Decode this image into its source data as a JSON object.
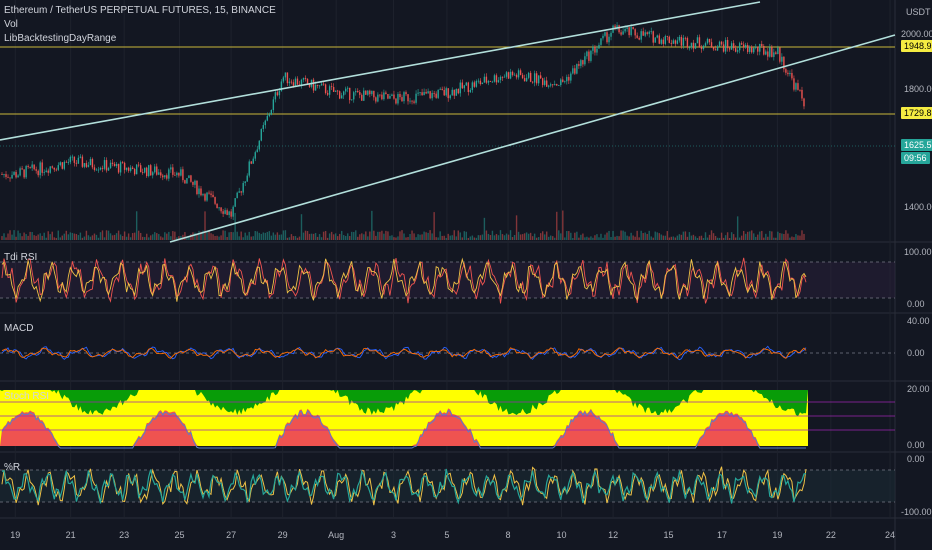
{
  "header": {
    "symbol_title": "Ethereum / TetherUS PERPETUAL FUTURES, 15, BINANCE",
    "indicator_vol": "Vol",
    "indicator_lib": "LibBacktestingDayRange"
  },
  "price_axis": {
    "unit": "USDT",
    "ticks": [
      "2000.00",
      "1800.00",
      "1400.00"
    ],
    "tags": [
      {
        "text": "1948.95",
        "bg": "#f5ec42",
        "fg": "#000000"
      },
      {
        "text": "1729.83",
        "bg": "#f5ec42",
        "fg": "#000000"
      },
      {
        "text": "1625.58",
        "bg": "#26a69a",
        "fg": "#ffffff"
      },
      {
        "text": "09:56",
        "bg": "#26a69a",
        "fg": "#ffffff"
      }
    ]
  },
  "panes": {
    "rsi": {
      "title": "Tdi RSI",
      "ticks": [
        "100.00",
        "0.00"
      ]
    },
    "macd": {
      "title": "MACD",
      "ticks": [
        "40.00",
        "0.00"
      ]
    },
    "stoch": {
      "title": "Stoch RSI",
      "ticks": [
        "20.00",
        "0.00"
      ]
    },
    "willr": {
      "title": "%R",
      "ticks": [
        "0.00",
        "-100.00"
      ]
    }
  },
  "time_axis": {
    "labels": [
      "19",
      "21",
      "23",
      "25",
      "27",
      "29",
      "Aug",
      "3",
      "5",
      "8",
      "10",
      "12",
      "15",
      "17",
      "19",
      "22",
      "24"
    ]
  },
  "colors": {
    "background": "#131722",
    "up": "#26a69a",
    "down": "#ef5350",
    "trendline": "#b2dfdb",
    "hline": "#c9b73a",
    "rsi_line": "#f0c246",
    "rsi_line2": "#ef5350",
    "macd_line": "#2962ff",
    "signal_line": "#ff6d00",
    "stoch_green": "#089c08",
    "stoch_yellow": "#ffff00",
    "stoch_red": "#ef5350",
    "willr_line": "#26a69a"
  },
  "chart_data": {
    "type": "line",
    "title": "Ethereum / TetherUS PERPETUAL FUTURES, 15, BINANCE",
    "xlabel": "",
    "ylabel": "USDT",
    "x": [
      "19",
      "21",
      "23",
      "25",
      "27",
      "29",
      "Aug",
      "3",
      "5",
      "8",
      "10",
      "12",
      "15",
      "17",
      "19",
      "22",
      "24"
    ],
    "series": [
      {
        "name": "",
        "values": [
          1560,
          1600,
          1580,
          1560,
          1430,
          1870,
          1820,
          1800,
          1820,
          1880,
          1850,
          2020,
          1990,
          1970,
          1950,
          1625,
          null
        ]
      }
    ],
    "ylim": [
      1350,
      2100
    ],
    "horizontal_lines": [
      1948.95,
      1729.83
    ],
    "last_price": 1625.58
  }
}
